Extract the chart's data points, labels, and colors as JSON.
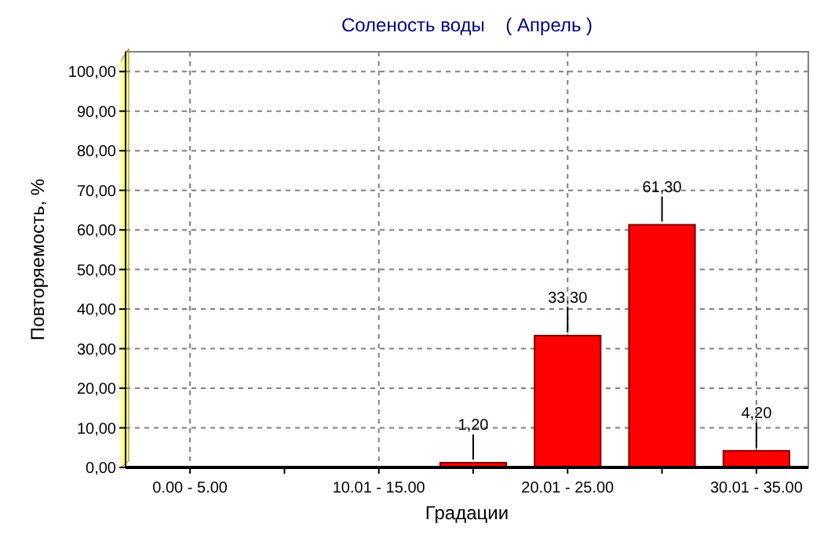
{
  "chart_data": {
    "type": "bar",
    "title": "Соленость воды    ( Апрель )",
    "xlabel": "Градации",
    "ylabel": "Повторяемость, %",
    "categories": [
      "0.00 - 5.00",
      null,
      "10.01 - 15.00",
      null,
      "20.01 - 25.00",
      null,
      "30.01 - 35.00"
    ],
    "values": [
      null,
      null,
      null,
      1.2,
      33.3,
      61.3,
      4.2
    ],
    "value_labels": [
      null,
      null,
      null,
      "1,20",
      "33,30",
      "61,30",
      "4,20"
    ],
    "color": "#ff0000",
    "ylim": [
      0,
      105
    ],
    "yticks": [
      {
        "value": 0,
        "label": "0,00"
      },
      {
        "value": 10,
        "label": "10,00"
      },
      {
        "value": 20,
        "label": "20,00"
      },
      {
        "value": 30,
        "label": "30,00"
      },
      {
        "value": 40,
        "label": "40,00"
      },
      {
        "value": 50,
        "label": "50,00"
      },
      {
        "value": 60,
        "label": "60,00"
      },
      {
        "value": 70,
        "label": "70,00"
      },
      {
        "value": 80,
        "label": "80,00"
      },
      {
        "value": 90,
        "label": "90,00"
      },
      {
        "value": 100,
        "label": "100,00"
      }
    ],
    "grid": true
  }
}
